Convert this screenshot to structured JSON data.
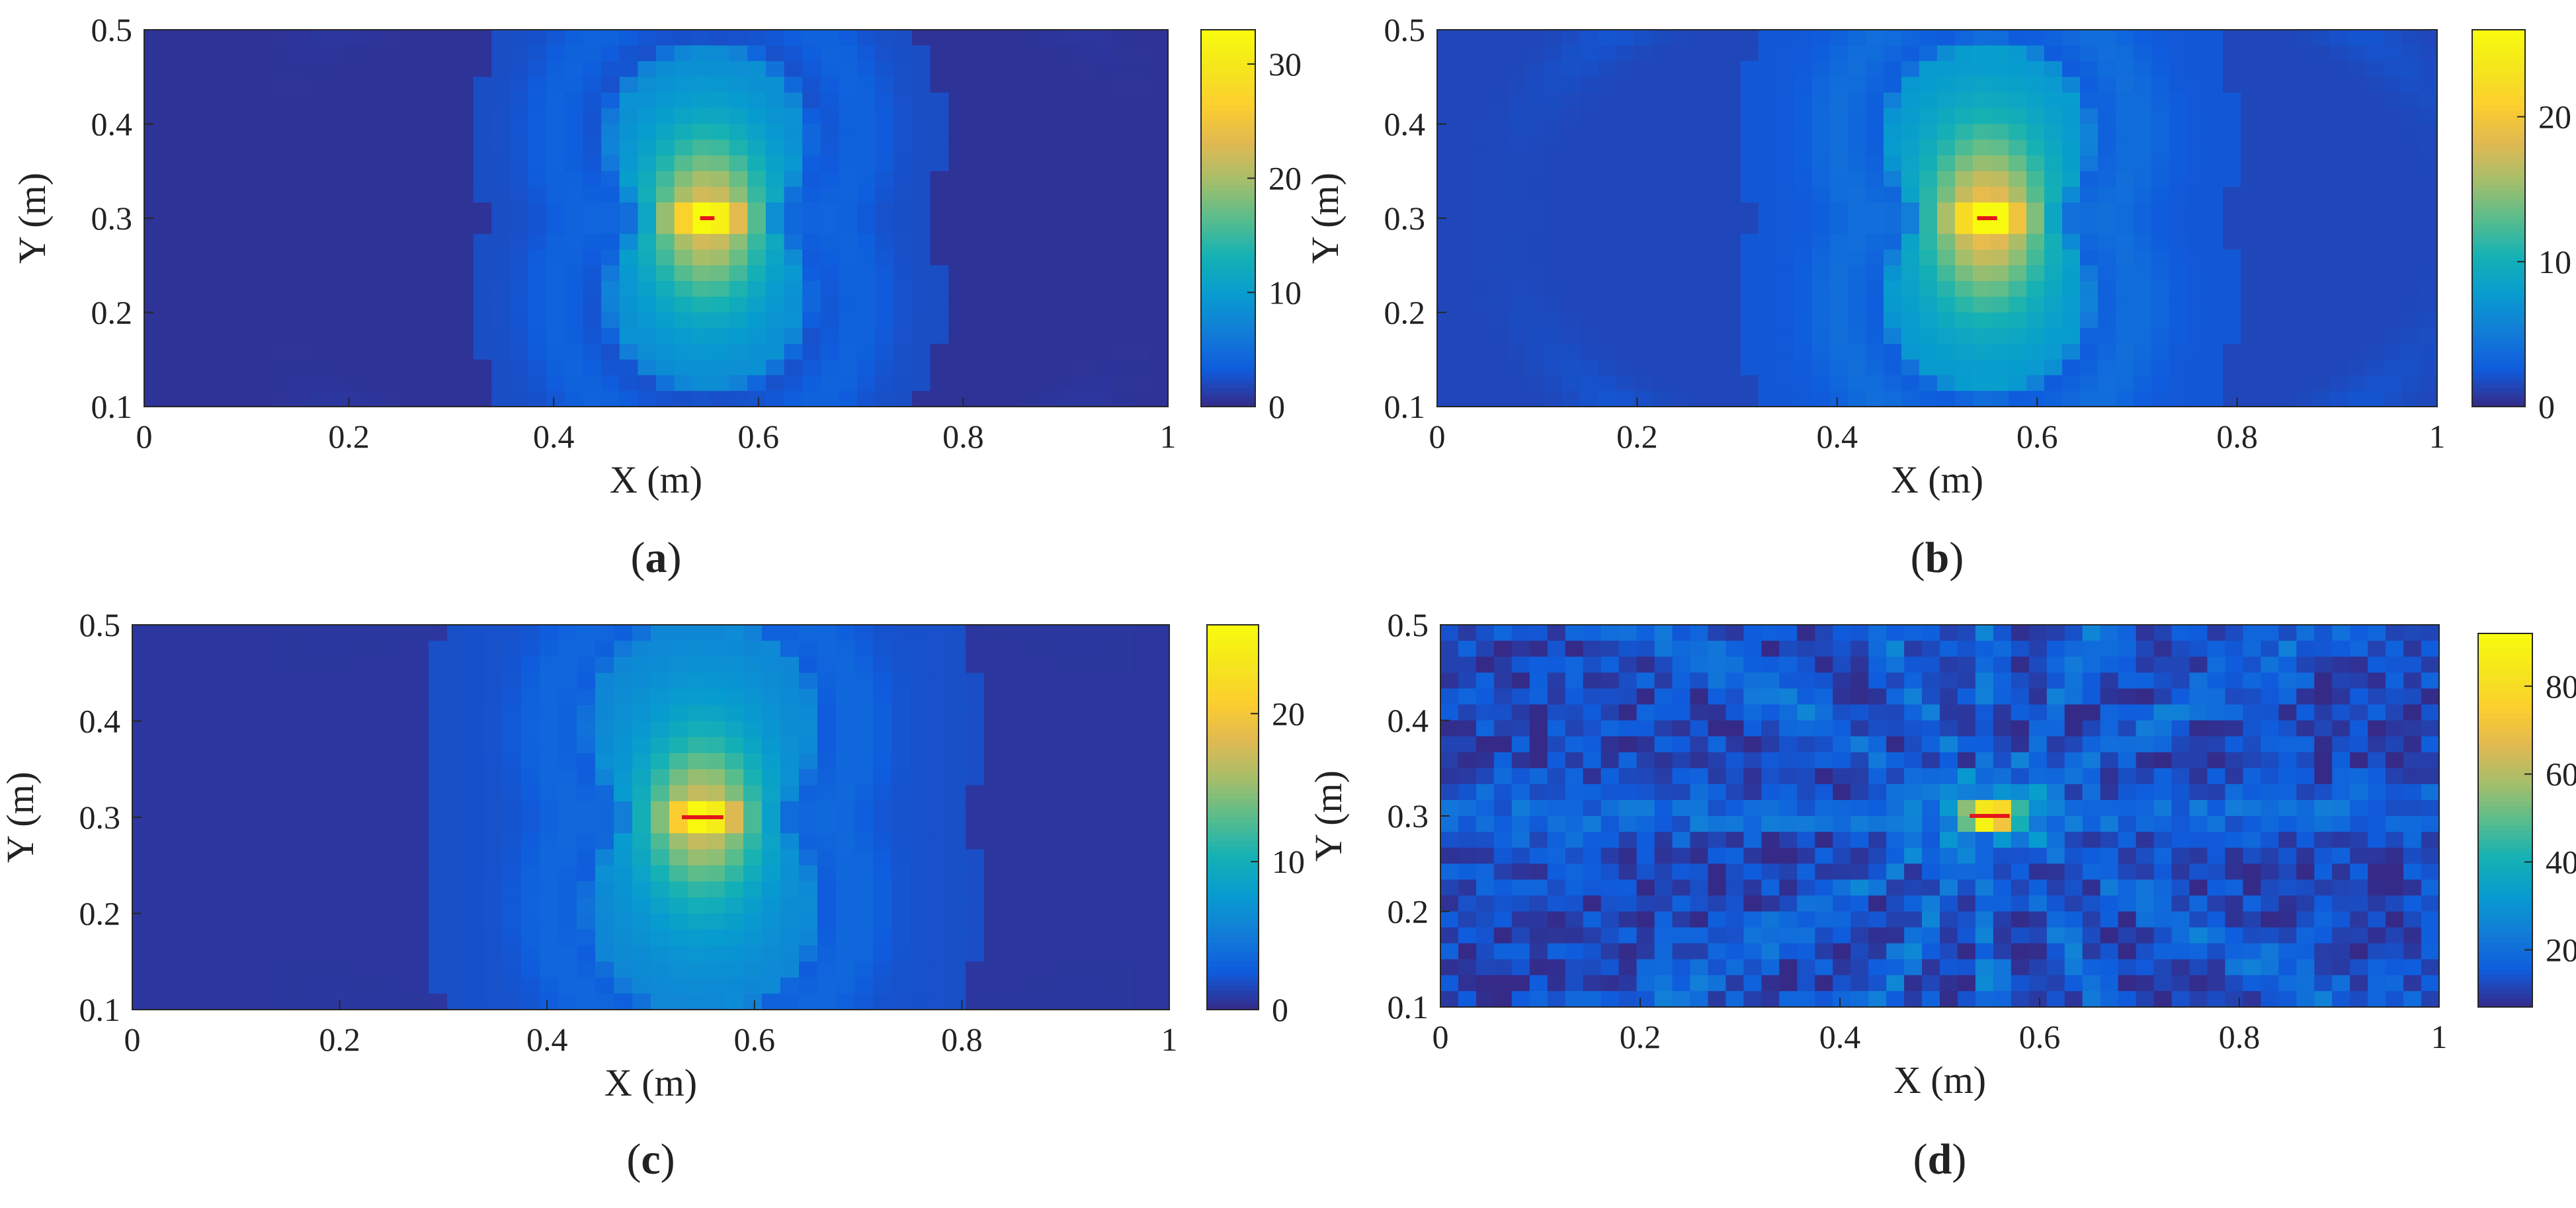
{
  "chart_data": [
    {
      "panel": "a",
      "type": "heatmap",
      "caption_letter": "a",
      "xlabel": "X (m)",
      "ylabel": "Y (m)",
      "xlim": [
        0,
        1
      ],
      "ylim": [
        0.1,
        0.5
      ],
      "x_ticks": [
        "0",
        "0.2",
        "0.4",
        "0.6",
        "0.8",
        "1"
      ],
      "y_ticks": [
        "0.1",
        "0.2",
        "0.3",
        "0.4",
        "0.5"
      ],
      "colorbar": {
        "range": [
          0,
          33
        ],
        "ticks": [
          "0",
          "10",
          "20",
          "30"
        ]
      },
      "colormap": "parula",
      "field": {
        "center": [
          0.55,
          0.3
        ],
        "peak": 33,
        "background": 0.6,
        "ring_radius": 0.085,
        "ring_offset": 0.085,
        "ring_level": 11,
        "ring_level_outer": 4,
        "halo_radius": 0.23,
        "side_extent": 0.7
      },
      "source_marker": {
        "x": [
          0.543,
          0.557
        ],
        "y": 0.3,
        "color": "#e3161b"
      }
    },
    {
      "panel": "b",
      "type": "heatmap",
      "caption_letter": "b",
      "xlabel": "X (m)",
      "ylabel": "Y (m)",
      "xlim": [
        0,
        1
      ],
      "ylim": [
        0.1,
        0.5
      ],
      "x_ticks": [
        "0",
        "0.2",
        "0.4",
        "0.6",
        "0.8",
        "1"
      ],
      "y_ticks": [
        "0.1",
        "0.2",
        "0.3",
        "0.4",
        "0.5"
      ],
      "colorbar": {
        "range": [
          0,
          26
        ],
        "ticks": [
          "0",
          "10",
          "20"
        ]
      },
      "colormap": "parula",
      "field": {
        "center": [
          0.55,
          0.3
        ],
        "peak": 26,
        "background": 1.5,
        "ring_radius": 0.09,
        "ring_offset": 0.085,
        "ring_level": 10,
        "ring_level_outer": 4,
        "halo_radius": 0.25,
        "side_extent": 0.85
      },
      "source_marker": {
        "x": [
          0.54,
          0.56
        ],
        "y": 0.3,
        "color": "#e3161b"
      }
    },
    {
      "panel": "c",
      "type": "heatmap",
      "caption_letter": "c",
      "xlabel": "X (m)",
      "ylabel": "Y (m)",
      "xlim": [
        0,
        1
      ],
      "ylim": [
        0.1,
        0.5
      ],
      "x_ticks": [
        "0",
        "0.2",
        "0.4",
        "0.6",
        "0.8",
        "1"
      ],
      "y_ticks": [
        "0.1",
        "0.2",
        "0.3",
        "0.4",
        "0.5"
      ],
      "colorbar": {
        "range": [
          0,
          26
        ],
        "ticks": [
          "0",
          "10",
          "20"
        ]
      },
      "colormap": "parula",
      "field": {
        "center": [
          0.55,
          0.3
        ],
        "peak": 26,
        "background": 0.7,
        "ring_radius": 0.1,
        "ring_offset": 0.095,
        "ring_level": 8,
        "ring_level_outer": 3.5,
        "halo_radius": 0.27,
        "side_extent": 0.6
      },
      "source_marker": {
        "x": [
          0.53,
          0.57
        ],
        "y": 0.3,
        "color": "#e3161b"
      }
    },
    {
      "panel": "d",
      "type": "heatmap",
      "caption_letter": "d",
      "xlabel": "X (m)",
      "ylabel": "Y (m)",
      "xlim": [
        0,
        1
      ],
      "ylim": [
        0.1,
        0.5
      ],
      "x_ticks": [
        "0",
        "0.2",
        "0.4",
        "0.6",
        "0.8",
        "1"
      ],
      "y_ticks": [
        "0.1",
        "0.2",
        "0.3",
        "0.4",
        "0.5"
      ],
      "colorbar": {
        "range": [
          7,
          92
        ],
        "ticks": [
          "20",
          "40",
          "60",
          "80"
        ]
      },
      "colormap": "parula",
      "field": {
        "center": [
          0.55,
          0.3
        ],
        "peak": 92,
        "background": 12,
        "noise": 6,
        "streaks": 12
      },
      "source_marker": {
        "x": [
          0.53,
          0.57
        ],
        "y": 0.3,
        "color": "#e3161b"
      }
    }
  ]
}
